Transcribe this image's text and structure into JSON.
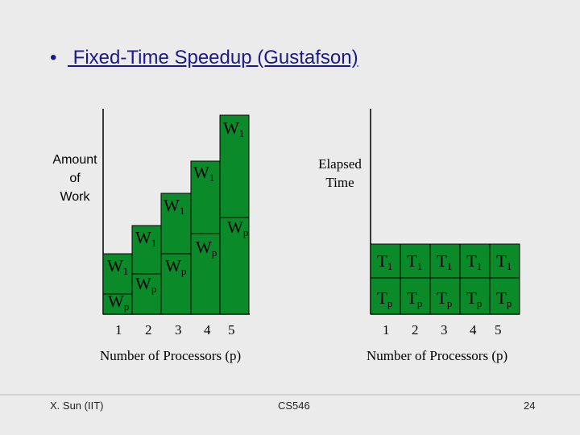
{
  "slide": {
    "bullet": "•",
    "title": " Fixed-Time Speedup (Gustafson)"
  },
  "left_chart": {
    "ylabel_lines": [
      "Amount",
      "of",
      "Work"
    ],
    "xlabel": "Number of Processors (p)",
    "x_ticks": [
      "1",
      "2",
      "3",
      "4",
      "5"
    ],
    "bar_labels": {
      "w1_main": "W",
      "w1_sub": "1",
      "wp_main": "W",
      "wp_sub": "p"
    }
  },
  "right_chart": {
    "annotation_lines": [
      "Elapsed",
      "Time"
    ],
    "xlabel": "Number of Processors (p)",
    "x_ticks": [
      "1",
      "2",
      "3",
      "4",
      "5"
    ],
    "t1_main": "T",
    "t1_sub": "1",
    "tp_main": "T",
    "tp_sub": "p"
  },
  "footer": {
    "author": "X. Sun (IIT)",
    "course": "CS546",
    "page": "24"
  },
  "colors": {
    "bar_fill": "#0b8a2a",
    "bar_stroke": "#000000",
    "background": "#ebebeb",
    "title_color": "#1a1a8c"
  }
}
